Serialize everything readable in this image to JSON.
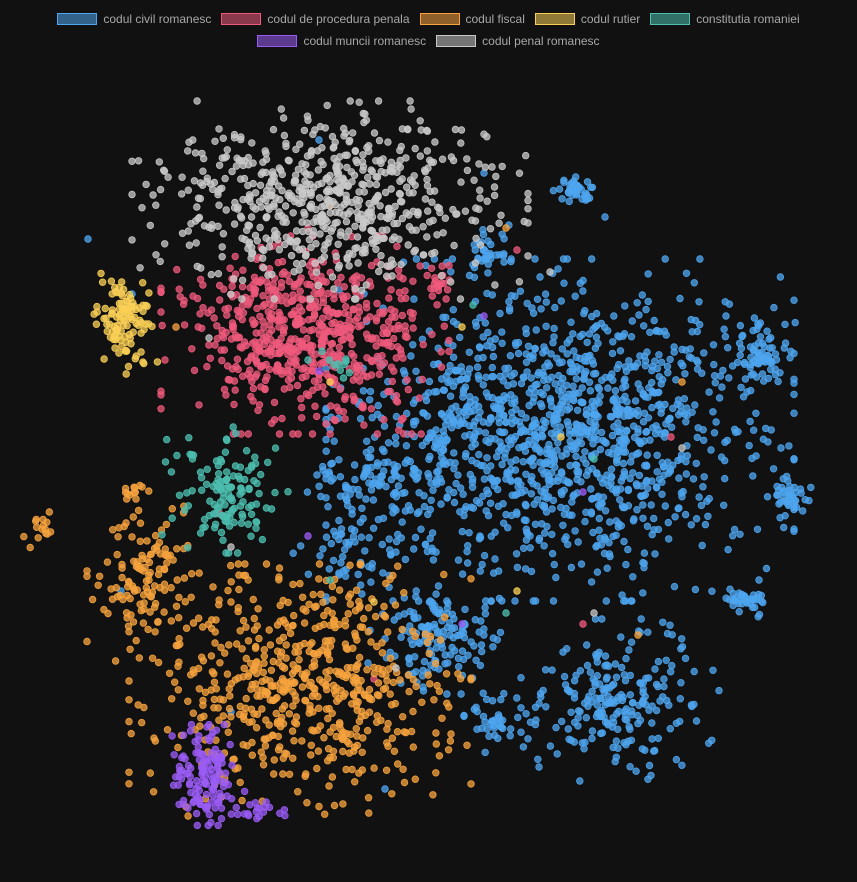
{
  "chart_data": {
    "type": "scatter",
    "title": "",
    "xlabel": "",
    "ylabel": "",
    "grid": false,
    "legend_position": "top-center",
    "background": "#111111",
    "series": [
      {
        "name": "codul civil romanesc",
        "color": "#4ea5ef",
        "clusters": [
          [
            560,
            430,
            130,
            95,
            1300
          ],
          [
            380,
            480,
            45,
            22,
            90
          ],
          [
            440,
            640,
            40,
            30,
            140
          ],
          [
            620,
            700,
            55,
            45,
            220
          ],
          [
            500,
            720,
            20,
            18,
            40
          ],
          [
            760,
            355,
            22,
            18,
            70
          ],
          [
            790,
            495,
            15,
            15,
            40
          ],
          [
            745,
            600,
            13,
            10,
            35
          ],
          [
            575,
            190,
            12,
            9,
            40
          ],
          [
            490,
            250,
            15,
            15,
            30
          ],
          [
            360,
            545,
            40,
            25,
            60
          ]
        ],
        "points": [
          [
            -3.2,
            2.1
          ],
          [
            -2.8,
            1.6
          ],
          [
            -1.1,
            3.0
          ],
          [
            0.4,
            2.7
          ],
          [
            1.5,
            2.3
          ],
          [
            2.6,
            1.4
          ],
          [
            3.1,
            0.2
          ],
          [
            2.9,
            -1.0
          ],
          [
            2.0,
            -2.1
          ],
          [
            0.9,
            -2.7
          ],
          [
            -0.5,
            -2.9
          ],
          [
            -1.9,
            -2.2
          ],
          [
            -2.9,
            -1.1
          ]
        ]
      },
      {
        "name": "codul de procedura penala",
        "color": "#ef5a7c",
        "clusters": [
          [
            305,
            335,
            80,
            55,
            650
          ],
          [
            440,
            285,
            10,
            8,
            15
          ]
        ],
        "points": [
          [
            -2.5,
            1.0
          ],
          [
            -1.2,
            2.2
          ],
          [
            0.7,
            2.0
          ],
          [
            2.1,
            0.3
          ],
          [
            1.3,
            -1.4
          ],
          [
            -0.6,
            -1.9
          ],
          [
            -2.0,
            -0.4
          ]
        ]
      },
      {
        "name": "codul fiscal",
        "color": "#f7a33e",
        "clusters": [
          [
            300,
            690,
            95,
            70,
            600
          ],
          [
            150,
            580,
            35,
            45,
            130
          ],
          [
            40,
            530,
            9,
            14,
            15
          ],
          [
            140,
            490,
            8,
            5,
            12
          ]
        ],
        "points": [
          [
            -2.4,
            1.3
          ],
          [
            -1.0,
            2.4
          ],
          [
            0.6,
            2.2
          ],
          [
            2.2,
            0.8
          ],
          [
            1.8,
            -1.5
          ],
          [
            0.1,
            -2.4
          ],
          [
            -1.9,
            -1.2
          ]
        ]
      },
      {
        "name": "codul rutier",
        "color": "#f9cf55",
        "clusters": [
          [
            125,
            320,
            18,
            30,
            110
          ]
        ],
        "points": [
          [
            -1.0,
            0.8
          ],
          [
            0.2,
            1.3
          ],
          [
            1.1,
            0.3
          ],
          [
            0.7,
            -1.1
          ],
          [
            -0.6,
            -1.2
          ]
        ]
      },
      {
        "name": "constitutia romaniei",
        "color": "#4cbfb0",
        "clusters": [
          [
            225,
            490,
            35,
            35,
            130
          ],
          [
            340,
            360,
            10,
            10,
            10
          ]
        ],
        "points": [
          [
            -1.2,
            1.0
          ],
          [
            0.3,
            1.5
          ],
          [
            1.4,
            0.1
          ],
          [
            0.6,
            -1.3
          ],
          [
            -1.0,
            -1.0
          ]
        ]
      },
      {
        "name": "codul muncii romanesc",
        "color": "#9b5cf5",
        "clusters": [
          [
            205,
            775,
            22,
            28,
            130
          ],
          [
            260,
            810,
            20,
            6,
            20
          ]
        ],
        "points": [
          [
            -1.1,
            0.9
          ],
          [
            0.4,
            1.4
          ],
          [
            1.3,
            -0.2
          ],
          [
            0.2,
            -1.4
          ],
          [
            -1.2,
            -0.6
          ]
        ]
      },
      {
        "name": "codul penal romanesc",
        "color": "#c9c9c9",
        "clusters": [
          [
            330,
            200,
            110,
            55,
            650
          ]
        ],
        "points": [
          [
            -2.1,
            1.2
          ],
          [
            -0.7,
            2.0
          ],
          [
            1.0,
            1.8
          ],
          [
            2.2,
            0.2
          ],
          [
            1.4,
            -1.3
          ],
          [
            -0.4,
            -1.8
          ],
          [
            -1.9,
            -0.7
          ]
        ]
      }
    ]
  }
}
